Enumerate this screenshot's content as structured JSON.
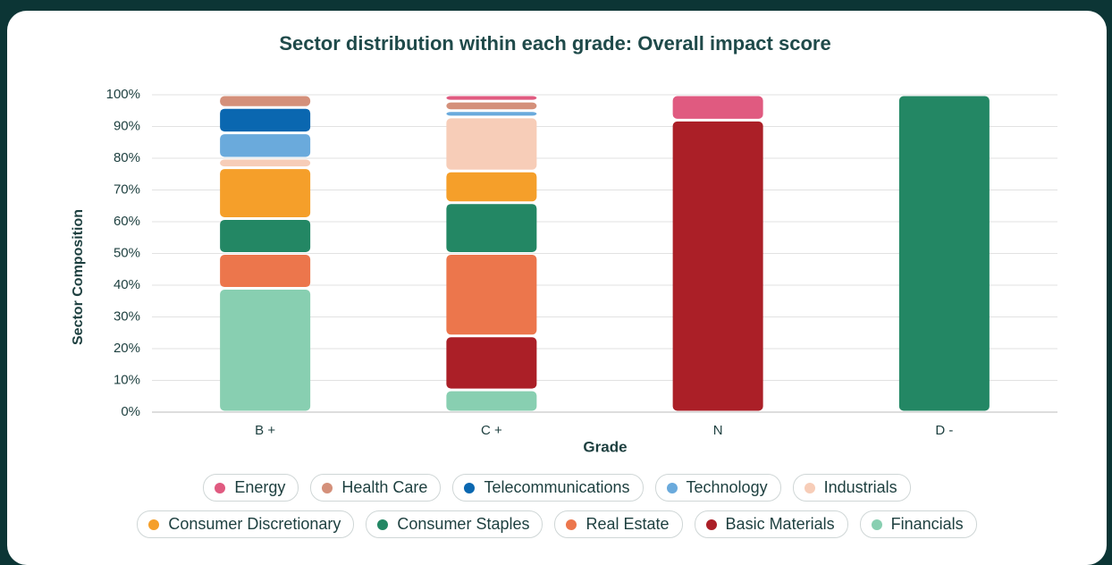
{
  "chart_data": {
    "type": "stacked_bar",
    "title": "Sector distribution within each grade: Overall impact score",
    "x_label": "Grade",
    "y_label": "Sector Composition",
    "categories": [
      "B +",
      "C +",
      "N",
      "D -"
    ],
    "series": [
      {
        "name": "Energy",
        "color": "#e05a80",
        "values": [
          0,
          2,
          8,
          0
        ]
      },
      {
        "name": "Health Care",
        "color": "#d4907a",
        "values": [
          4,
          3,
          0,
          0
        ]
      },
      {
        "name": "Telecommunications",
        "color": "#0a67b0",
        "values": [
          8,
          0,
          0,
          0
        ]
      },
      {
        "name": "Technology",
        "color": "#6aaadc",
        "values": [
          8,
          2,
          0,
          0
        ]
      },
      {
        "name": "Industrials",
        "color": "#f7cdb8",
        "values": [
          3,
          17,
          0,
          0
        ]
      },
      {
        "name": "Consumer Discretionary",
        "color": "#f59f2a",
        "values": [
          16,
          10,
          0,
          0
        ]
      },
      {
        "name": "Consumer Staples",
        "color": "#238764",
        "values": [
          11,
          16,
          0,
          100
        ]
      },
      {
        "name": "Real Estate",
        "color": "#ec764c",
        "values": [
          11,
          26,
          0,
          0
        ]
      },
      {
        "name": "Basic Materials",
        "color": "#ab1f27",
        "values": [
          0,
          17,
          92,
          0
        ]
      },
      {
        "name": "Financials",
        "color": "#88cfb1",
        "values": [
          39,
          7,
          0,
          0
        ]
      }
    ],
    "ylim": [
      0,
      100
    ],
    "yticks": [
      {
        "value": 0,
        "label": "0%"
      },
      {
        "value": 10,
        "label": "10%"
      },
      {
        "value": 20,
        "label": "20%"
      },
      {
        "value": 30,
        "label": "30%"
      },
      {
        "value": 40,
        "label": "40%"
      },
      {
        "value": 50,
        "label": "50%"
      },
      {
        "value": 60,
        "label": "60%"
      },
      {
        "value": 70,
        "label": "70%"
      },
      {
        "value": 80,
        "label": "80%"
      },
      {
        "value": 90,
        "label": "90%"
      },
      {
        "value": 100,
        "label": "100%"
      }
    ],
    "grid": true
  }
}
